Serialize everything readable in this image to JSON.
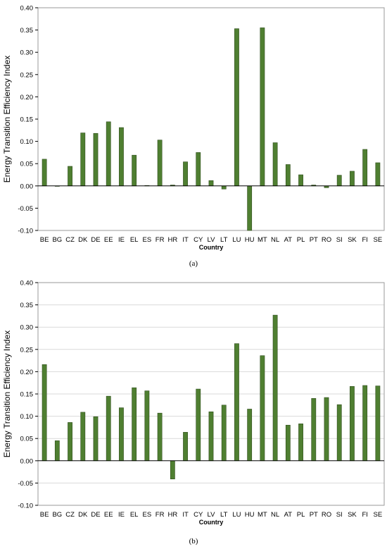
{
  "chart_data": [
    {
      "type": "bar",
      "caption": "(a)",
      "xlabel": "Country",
      "ylabel": "Energy Transition Efficiency Index",
      "ylim": [
        -0.1,
        0.4
      ],
      "yticks": [
        "-0.10",
        "-0.05",
        "0.00",
        "0.05",
        "0.10",
        "0.15",
        "0.20",
        "0.25",
        "0.30",
        "0.35",
        "0.40"
      ],
      "grid": false,
      "bar_color": "#4f7f31",
      "categories": [
        "BE",
        "BG",
        "CZ",
        "DK",
        "DE",
        "EE",
        "IE",
        "EL",
        "ES",
        "FR",
        "HR",
        "IT",
        "CY",
        "LV",
        "LT",
        "LU",
        "HU",
        "MT",
        "NL",
        "AT",
        "PL",
        "PT",
        "RO",
        "SI",
        "SK",
        "FI",
        "SE"
      ],
      "values": [
        0.06,
        0.0,
        0.044,
        0.119,
        0.118,
        0.144,
        0.131,
        0.069,
        0.001,
        0.103,
        0.002,
        0.054,
        0.075,
        0.012,
        -0.007,
        0.353,
        -0.1,
        0.355,
        0.097,
        0.048,
        0.025,
        0.002,
        -0.004,
        0.024,
        0.033,
        0.082,
        0.052
      ]
    },
    {
      "type": "bar",
      "caption": "(b)",
      "xlabel": "Country",
      "ylabel": "Energy Transition Efficiency Index",
      "ylim": [
        -0.1,
        0.4
      ],
      "yticks": [
        "-0.10",
        "-0.05",
        "0.00",
        "0.05",
        "0.10",
        "0.15",
        "0.20",
        "0.25",
        "0.30",
        "0.35",
        "0.40"
      ],
      "grid": true,
      "bar_color": "#4f7f31",
      "categories": [
        "BE",
        "BG",
        "CZ",
        "DK",
        "DE",
        "EE",
        "IE",
        "EL",
        "ES",
        "FR",
        "HR",
        "IT",
        "CY",
        "LV",
        "LT",
        "LU",
        "HU",
        "MT",
        "NL",
        "AT",
        "PL",
        "PT",
        "RO",
        "SI",
        "SK",
        "FI",
        "SE"
      ],
      "values": [
        0.216,
        0.045,
        0.086,
        0.109,
        0.099,
        0.145,
        0.119,
        0.164,
        0.157,
        0.107,
        -0.041,
        0.064,
        0.161,
        0.11,
        0.125,
        0.263,
        0.116,
        0.236,
        0.327,
        0.08,
        0.083,
        0.14,
        0.142,
        0.126,
        0.167,
        0.169,
        0.168
      ]
    }
  ]
}
